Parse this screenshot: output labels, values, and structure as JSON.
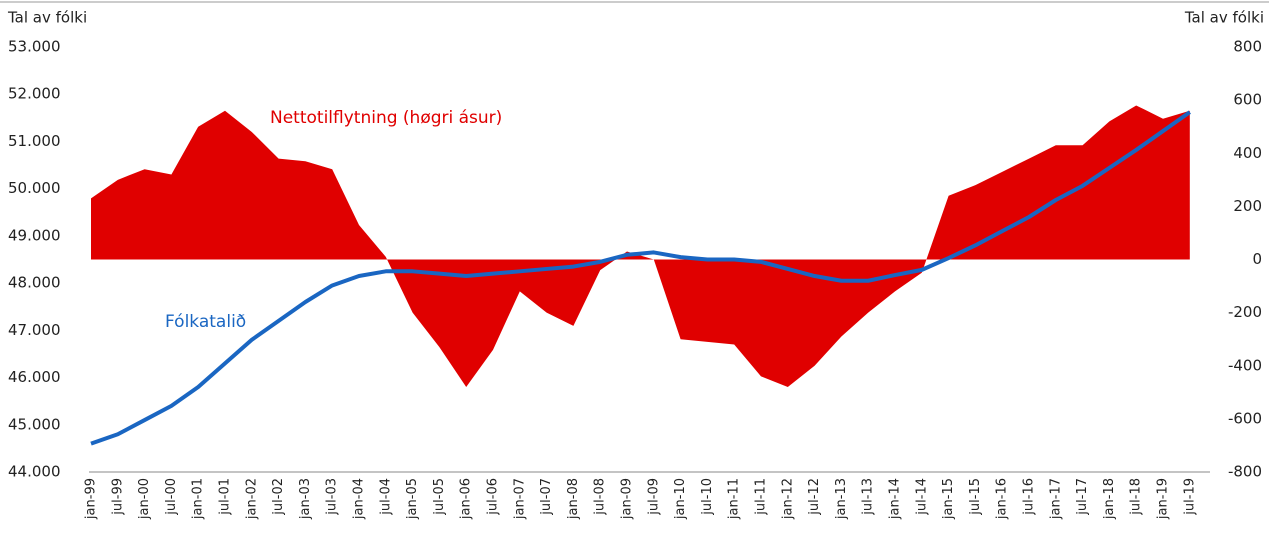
{
  "chart_data": {
    "type": "combo",
    "y_label": "Tal av fólki",
    "y2_label": "Tal av fólki",
    "annotations": [
      "Nettotilflytning (høgri ásur)",
      "Fólkatalið"
    ],
    "categories": [
      "jan-99",
      "jul-99",
      "jan-00",
      "jul-00",
      "jan-01",
      "jul-01",
      "jan-02",
      "jul-02",
      "jan-03",
      "jul-03",
      "jan-04",
      "jul-04",
      "jan-05",
      "jul-05",
      "jan-06",
      "jul-06",
      "jan-07",
      "jul-07",
      "jan-08",
      "jul-08",
      "jan-09",
      "jul-09",
      "jan-10",
      "jul-10",
      "jan-11",
      "jul-11",
      "jan-12",
      "jul-12",
      "jan-13",
      "jul-13",
      "jan-14",
      "jul-14",
      "jan-15",
      "jul-15",
      "jan-16",
      "jul-16",
      "jan-17",
      "jul-17",
      "jan-18",
      "jul-18",
      "jan-19",
      "jul-19"
    ],
    "series": [
      {
        "name": "Nettotilflytning (høgri ásur)",
        "type": "area",
        "axis": "y2",
        "color": "#e00000",
        "values": [
          230,
          300,
          340,
          320,
          500,
          560,
          480,
          380,
          370,
          340,
          130,
          10,
          -200,
          -330,
          -480,
          -340,
          -120,
          -200,
          -250,
          -40,
          30,
          0,
          -300,
          -310,
          -320,
          -440,
          -480,
          -400,
          -290,
          -200,
          -120,
          -50,
          240,
          280,
          330,
          380,
          430,
          430,
          520,
          580,
          530,
          560
        ]
      },
      {
        "name": "Fólkatalið",
        "type": "line",
        "axis": "y",
        "color": "#1a66c2",
        "values": [
          44600,
          44800,
          45100,
          45400,
          45800,
          46300,
          46800,
          47200,
          47600,
          47950,
          48150,
          48250,
          48250,
          48200,
          48150,
          48200,
          48250,
          48300,
          48350,
          48450,
          48600,
          48650,
          48550,
          48500,
          48500,
          48450,
          48300,
          48150,
          48050,
          48050,
          48170,
          48280,
          48530,
          48800,
          49100,
          49400,
          49760,
          50060,
          50440,
          50820,
          51220,
          51620
        ]
      }
    ],
    "ylim": [
      44000,
      53000
    ],
    "yticks": [
      {
        "value": 44000,
        "label": "44.000"
      },
      {
        "value": 45000,
        "label": "45.000"
      },
      {
        "value": 46000,
        "label": "46.000"
      },
      {
        "value": 47000,
        "label": "47.000"
      },
      {
        "value": 48000,
        "label": "48.000"
      },
      {
        "value": 49000,
        "label": "49.000"
      },
      {
        "value": 50000,
        "label": "50.000"
      },
      {
        "value": 51000,
        "label": "51.000"
      },
      {
        "value": 52000,
        "label": "52.000"
      },
      {
        "value": 53000,
        "label": "53.000"
      }
    ],
    "y2lim": [
      -800,
      800
    ],
    "y2ticks": [
      -800,
      -600,
      -400,
      -200,
      0,
      200,
      400,
      600,
      800
    ]
  }
}
